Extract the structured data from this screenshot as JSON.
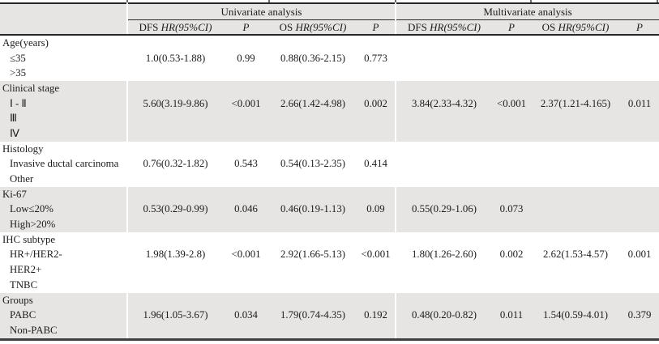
{
  "header": {
    "group_univariate": "Univariate analysis",
    "group_multivariate": "Multivariate analysis",
    "col_dfs_prefix": "DFS ",
    "col_dfs_italic": "HR(95%CI)",
    "col_os_prefix": "OS ",
    "col_os_italic": "HR(95%CI)",
    "col_p": "P"
  },
  "sections": [
    {
      "shaded": false,
      "rows": [
        {
          "label": "Age(years)",
          "indent": false,
          "values": [
            "",
            "",
            "",
            "",
            "",
            "",
            "",
            ""
          ]
        },
        {
          "label": "≤35",
          "indent": true,
          "values": [
            "1.0(0.53-1.88)",
            "0.99",
            "0.88(0.36-2.15)",
            "0.773",
            "",
            "",
            "",
            ""
          ]
        },
        {
          "label": ">35",
          "indent": true,
          "values": [
            "",
            "",
            "",
            "",
            "",
            "",
            "",
            ""
          ]
        }
      ]
    },
    {
      "shaded": true,
      "rows": [
        {
          "label": "Clinical stage",
          "indent": false,
          "values": [
            "",
            "",
            "",
            "",
            "",
            "",
            "",
            ""
          ]
        },
        {
          "label": "Ⅰ - Ⅱ",
          "indent": true,
          "values": [
            "5.60(3.19-9.86)",
            "<0.001",
            "2.66(1.42-4.98)",
            "0.002",
            "3.84(2.33-4.32)",
            "<0.001",
            "2.37(1.21-4.165)",
            "0.011"
          ]
        },
        {
          "label": "Ⅲ",
          "indent": true,
          "values": [
            "",
            "",
            "",
            "",
            "",
            "",
            "",
            ""
          ]
        },
        {
          "label": "Ⅳ",
          "indent": true,
          "values": [
            "",
            "",
            "",
            "",
            "",
            "",
            "",
            ""
          ]
        }
      ]
    },
    {
      "shaded": false,
      "rows": [
        {
          "label": "Histology",
          "indent": false,
          "values": [
            "",
            "",
            "",
            "",
            "",
            "",
            "",
            ""
          ]
        },
        {
          "label": "Invasive ductal carcinoma",
          "indent": true,
          "values": [
            "0.76(0.32-1.82)",
            "0.543",
            "0.54(0.13-2.35)",
            "0.414",
            "",
            "",
            "",
            ""
          ]
        },
        {
          "label": "Other",
          "indent": true,
          "values": [
            "",
            "",
            "",
            "",
            "",
            "",
            "",
            ""
          ]
        }
      ]
    },
    {
      "shaded": true,
      "rows": [
        {
          "label": "Ki-67",
          "indent": false,
          "values": [
            "",
            "",
            "",
            "",
            "",
            "",
            "",
            ""
          ]
        },
        {
          "label": "Low≤20%",
          "indent": true,
          "values": [
            "0.53(0.29-0.99)",
            "0.046",
            "0.46(0.19-1.13)",
            "0.09",
            "0.55(0.29-1.06)",
            "0.073",
            "",
            ""
          ]
        },
        {
          "label": "High>20%",
          "indent": true,
          "values": [
            "",
            "",
            "",
            "",
            "",
            "",
            "",
            ""
          ]
        }
      ]
    },
    {
      "shaded": false,
      "rows": [
        {
          "label": "IHC subtype",
          "indent": false,
          "values": [
            "",
            "",
            "",
            "",
            "",
            "",
            "",
            ""
          ]
        },
        {
          "label": "HR+/HER2-",
          "indent": true,
          "values": [
            "1.98(1.39-2.8)",
            "<0.001",
            "2.92(1.66-5.13)",
            "<0.001",
            "1.80(1.26-2.60)",
            "0.002",
            "2.62(1.53-4.57)",
            "0.001"
          ]
        },
        {
          "label": "HER2+",
          "indent": true,
          "values": [
            "",
            "",
            "",
            "",
            "",
            "",
            "",
            ""
          ]
        },
        {
          "label": "TNBC",
          "indent": true,
          "values": [
            "",
            "",
            "",
            "",
            "",
            "",
            "",
            ""
          ]
        }
      ]
    },
    {
      "shaded": true,
      "rows": [
        {
          "label": "Groups",
          "indent": false,
          "values": [
            "",
            "",
            "",
            "",
            "",
            "",
            "",
            ""
          ]
        },
        {
          "label": "PABC",
          "indent": true,
          "values": [
            "1.96(1.05-3.67)",
            "0.034",
            "1.79(0.74-4.35)",
            "0.192",
            "0.48(0.20-0.82)",
            "0.011",
            "1.54(0.59-4.01)",
            "0.379"
          ]
        },
        {
          "label": "Non-PABC",
          "indent": true,
          "values": [
            "",
            "",
            "",
            "",
            "",
            "",
            "",
            ""
          ]
        }
      ]
    }
  ],
  "colors": {
    "band_gray": "#e6e5e4",
    "rule_dark": "#262626",
    "text": "#1c1c1c"
  }
}
